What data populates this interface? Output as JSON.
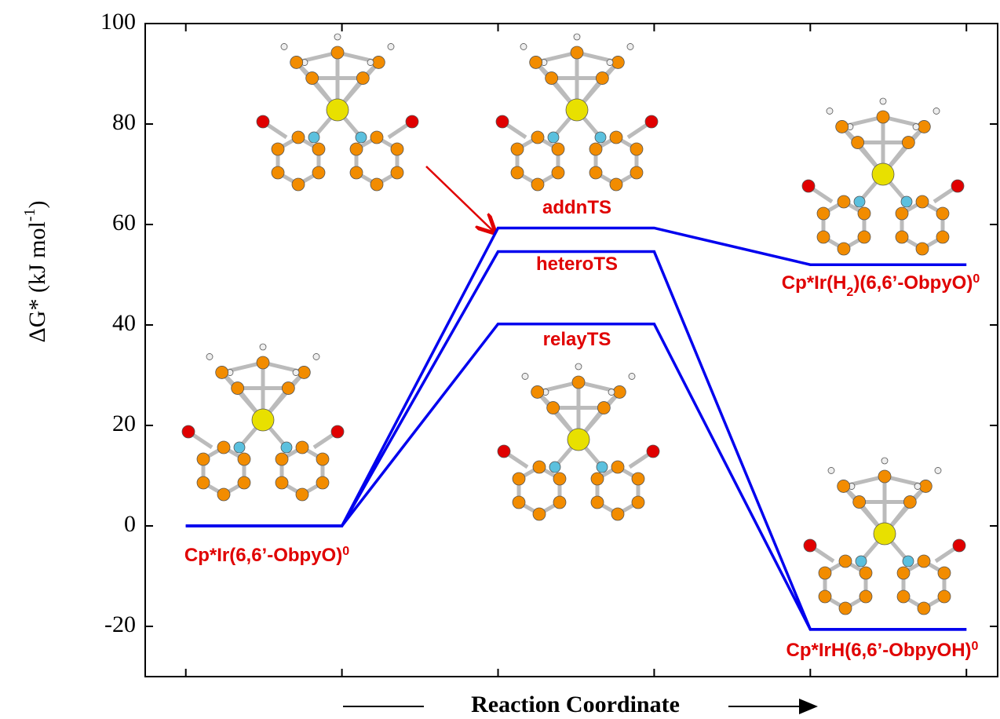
{
  "chart_data": {
    "type": "line",
    "x_label": "Reaction Coordinate",
    "y_label": [
      {
        "text": "ΔG* (kJ mol"
      },
      {
        "text": "-1",
        "sup": true
      },
      {
        "text": ")"
      }
    ],
    "x": [
      0,
      1,
      2,
      3,
      4,
      5
    ],
    "xlim": [
      -0.26,
      5.2
    ],
    "xticks": [
      0,
      1,
      2,
      3,
      4,
      5
    ],
    "ylim": [
      -30,
      100
    ],
    "yticks": [
      -20,
      0,
      20,
      40,
      60,
      80,
      100
    ],
    "series": [
      {
        "name": "addnTS",
        "color": "#0000ee",
        "values": [
          0,
          0,
          59.3,
          59.3,
          52,
          52
        ]
      },
      {
        "name": "heteroTS",
        "color": "#0000ee",
        "values": [
          0,
          0,
          54.6,
          54.6,
          -20.6,
          -20.6
        ]
      },
      {
        "name": "relayTS",
        "color": "#0000ee",
        "values": [
          0,
          0,
          40.2,
          40.2,
          -20.6,
          -20.6
        ]
      }
    ],
    "annotations": [
      [
        {
          "text": "Cp*Ir(6,6’-ObpyO)"
        },
        {
          "text": "0",
          "sup": true
        }
      ],
      [
        {
          "text": "Cp*Ir(H"
        },
        {
          "text": "2",
          "sub": true
        },
        {
          "text": ")(6,6’-ObpyO)"
        },
        {
          "text": "0",
          "sup": true
        }
      ],
      [
        {
          "text": "Cp*IrH(6,6’-ObpyOH)"
        },
        {
          "text": "0",
          "sup": true
        }
      ]
    ]
  }
}
